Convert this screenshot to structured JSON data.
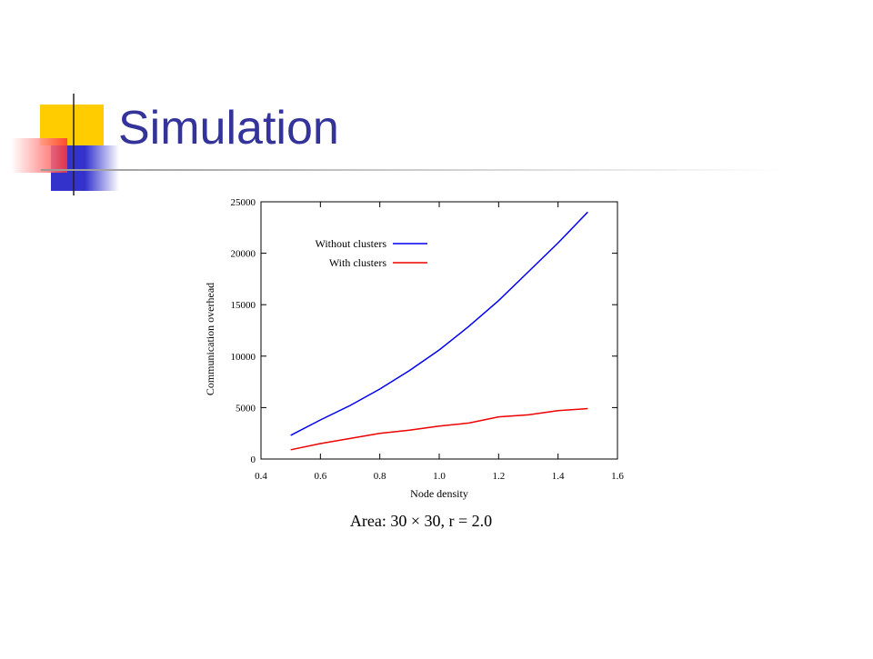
{
  "slide_title": "Simulation",
  "chart_data": {
    "type": "line",
    "xlabel": "Node density",
    "ylabel": "Communication overhead",
    "caption": "Area: 30 × 30, r = 2.0",
    "x": [
      0.5,
      0.6,
      0.7,
      0.8,
      0.9,
      1.0,
      1.1,
      1.2,
      1.3,
      1.4,
      1.5
    ],
    "series": [
      {
        "name": "Without clusters",
        "color": "#0000ee",
        "values": [
          2300,
          3800,
          5200,
          6800,
          8600,
          10600,
          12900,
          15400,
          18200,
          21000,
          24000
        ]
      },
      {
        "name": "With clusters",
        "color": "#ee0000",
        "values": [
          900,
          1500,
          2000,
          2500,
          2800,
          3200,
          3500,
          4100,
          4300,
          4700,
          4900
        ]
      }
    ],
    "xlim": [
      0.4,
      1.6
    ],
    "xticks": [
      0.4,
      0.6,
      0.8,
      {
        "value": 1,
        "label": "1.0"
      },
      1.2,
      1.4,
      1.6
    ],
    "ylim": [
      0,
      25000
    ],
    "yticks": [
      0,
      5000,
      10000,
      15000,
      20000,
      25000
    ],
    "legend": "upper left",
    "grid": false
  }
}
